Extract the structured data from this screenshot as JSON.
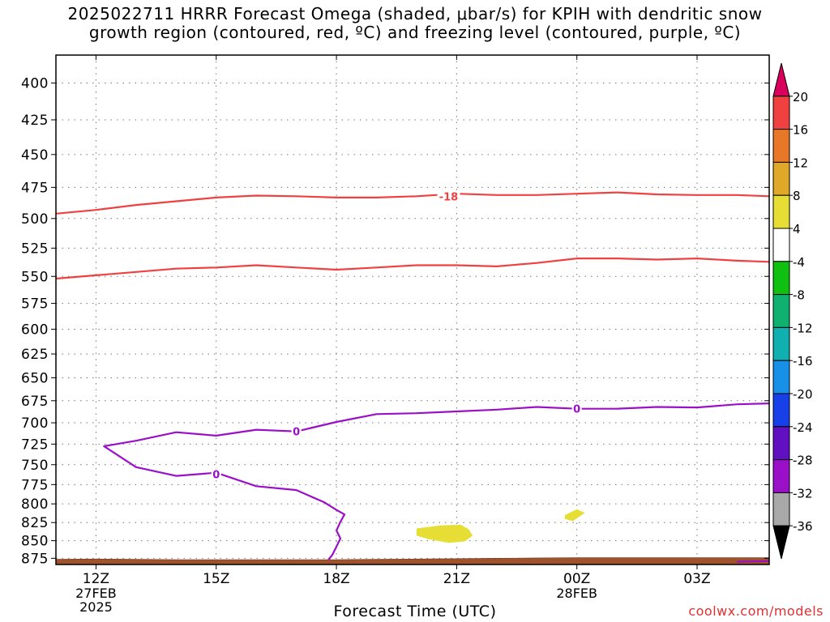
{
  "title_line1": "2025022711 HRRR Forecast Omega (shaded, μbar/s) for KPIH with dendritic snow",
  "title_line2": "growth region (contoured, red, ºC) and freezing level (contoured, purple, ºC)",
  "credit": "coolwx.com/models",
  "chart_data": {
    "type": "contour",
    "xlabel": "Forecast Time (UTC)",
    "x_ticks": [
      {
        "hour": 12,
        "label": "12Z",
        "sub": [
          "27FEB",
          "2025"
        ]
      },
      {
        "hour": 15,
        "label": "15Z",
        "sub": []
      },
      {
        "hour": 18,
        "label": "18Z",
        "sub": []
      },
      {
        "hour": 21,
        "label": "21Z",
        "sub": []
      },
      {
        "hour": 24,
        "label": "00Z",
        "sub": [
          "28FEB"
        ]
      },
      {
        "hour": 27,
        "label": "03Z",
        "sub": []
      }
    ],
    "xlim_hours": [
      11,
      28.8
    ],
    "y_ticks": [
      400,
      425,
      450,
      475,
      500,
      525,
      550,
      575,
      600,
      625,
      650,
      675,
      700,
      725,
      750,
      775,
      800,
      825,
      850,
      875
    ],
    "ylim_hpa": [
      382,
      884
    ],
    "y_scale": "log-pressure",
    "grid": true,
    "colorbar": {
      "levels": [
        20,
        16,
        12,
        8,
        4,
        -4,
        -8,
        -12,
        -16,
        -20,
        -24,
        -28,
        -32,
        -36
      ],
      "colors": [
        "#d8005c",
        "#f04040",
        "#e87828",
        "#e0a828",
        "#e6de34",
        "#ffffff",
        "#10c010",
        "#10b070",
        "#10b0b0",
        "#1890e8",
        "#1840e8",
        "#6010c0",
        "#9a10c8",
        "#a8a8a8",
        "#000000"
      ]
    },
    "series": [
      {
        "kind": "isotherm",
        "label": "-18",
        "color": "#f04040",
        "points": [
          [
            11,
            496
          ],
          [
            12,
            493
          ],
          [
            13,
            489
          ],
          [
            14,
            486
          ],
          [
            15,
            483
          ],
          [
            16,
            481.5
          ],
          [
            17,
            482
          ],
          [
            18,
            483
          ],
          [
            19,
            483
          ],
          [
            20,
            482
          ],
          [
            21,
            480
          ],
          [
            22,
            481
          ],
          [
            23,
            481
          ],
          [
            24,
            480
          ],
          [
            25,
            479
          ],
          [
            26,
            480.5
          ],
          [
            27,
            481
          ],
          [
            28,
            481
          ],
          [
            28.8,
            482
          ]
        ]
      },
      {
        "kind": "isotherm",
        "label": "",
        "color": "#f04040",
        "points": [
          [
            11,
            552
          ],
          [
            12,
            549
          ],
          [
            13,
            546
          ],
          [
            14,
            543
          ],
          [
            15,
            542
          ],
          [
            16,
            540
          ],
          [
            17,
            542
          ],
          [
            18,
            544
          ],
          [
            19,
            542
          ],
          [
            20,
            540
          ],
          [
            21,
            540
          ],
          [
            22,
            541
          ],
          [
            23,
            538
          ],
          [
            24,
            534
          ],
          [
            25,
            534
          ],
          [
            26,
            535
          ],
          [
            27,
            534
          ],
          [
            28,
            536
          ],
          [
            28.8,
            537
          ]
        ]
      },
      {
        "kind": "freezing",
        "label": "0",
        "color": "#9a10c8",
        "points": [
          [
            28.8,
            678
          ],
          [
            28,
            679
          ],
          [
            27,
            682.5
          ],
          [
            26,
            682
          ],
          [
            25,
            684
          ],
          [
            24,
            684
          ],
          [
            23,
            682
          ],
          [
            22,
            685
          ],
          [
            21,
            687
          ],
          [
            20,
            689
          ],
          [
            19,
            690
          ],
          [
            18,
            699
          ],
          [
            17,
            710
          ],
          [
            16,
            708
          ],
          [
            15,
            715
          ],
          [
            14,
            711
          ],
          [
            13,
            721
          ],
          [
            12.2,
            727.5
          ],
          [
            13,
            753
          ],
          [
            14,
            764
          ],
          [
            15,
            760
          ],
          [
            16,
            777
          ],
          [
            17,
            782
          ],
          [
            17.7,
            798
          ],
          [
            18,
            808
          ],
          [
            18.2,
            814
          ],
          [
            18.1,
            824
          ],
          [
            18.0,
            836
          ],
          [
            18.1,
            847
          ],
          [
            17.9,
            870
          ],
          [
            17.8,
            877
          ]
        ]
      },
      {
        "kind": "freezing",
        "label": "",
        "color": "#9a10c8",
        "points": [
          [
            28,
            880
          ],
          [
            28.8,
            879
          ]
        ]
      }
    ],
    "shaded_regions": [
      {
        "level": "4 to 8",
        "color": "#e6de34",
        "points": [
          [
            20.0,
            833
          ],
          [
            20.6,
            829
          ],
          [
            21.1,
            828
          ],
          [
            21.3,
            834
          ],
          [
            21.4,
            843
          ],
          [
            21.2,
            851
          ],
          [
            20.8,
            853
          ],
          [
            20.3,
            848
          ],
          [
            20.0,
            843
          ]
        ]
      },
      {
        "level": "4 to 8",
        "color": "#e6de34",
        "points": [
          [
            23.7,
            815
          ],
          [
            24.0,
            807
          ],
          [
            24.2,
            812
          ],
          [
            23.9,
            823
          ],
          [
            23.7,
            820
          ]
        ]
      }
    ],
    "terrain": {
      "color": "#a0522d",
      "surface_points": [
        [
          11,
          876.5
        ],
        [
          12,
          876
        ],
        [
          13,
          876.5
        ],
        [
          14,
          877
        ],
        [
          15,
          877
        ],
        [
          16,
          877
        ],
        [
          17,
          877
        ],
        [
          18,
          877
        ],
        [
          19,
          876.5
        ],
        [
          20,
          876
        ],
        [
          21,
          875.5
        ],
        [
          22,
          875
        ],
        [
          23,
          874.5
        ],
        [
          24,
          874
        ],
        [
          25,
          874
        ],
        [
          26,
          874
        ],
        [
          27,
          874
        ],
        [
          28,
          874
        ],
        [
          28.8,
          874
        ]
      ]
    }
  }
}
